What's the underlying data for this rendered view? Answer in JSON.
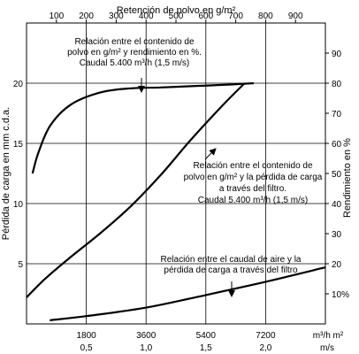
{
  "chart_data": {
    "type": "line",
    "top_axis": {
      "label": "Retención de polvo en g/m²",
      "range": [
        0,
        1000
      ],
      "ticks": [
        100,
        200,
        300,
        400,
        500,
        600,
        700,
        800,
        900
      ]
    },
    "left_axis": {
      "label": "Pérdida de carga en mm c.d.a.",
      "range": [
        0,
        25
      ],
      "ticks": [
        5,
        10,
        15,
        20
      ]
    },
    "right_axis": {
      "label": "Rendimiento en %",
      "range": [
        0,
        100
      ],
      "ticks": [
        {
          "v": 10,
          "t": "10%"
        },
        {
          "v": 20,
          "t": "20"
        },
        {
          "v": 30,
          "t": "30"
        },
        {
          "v": 40,
          "t": "40"
        },
        {
          "v": 50,
          "t": "50"
        },
        {
          "v": 60,
          "t": "60"
        },
        {
          "v": 70,
          "t": "70"
        },
        {
          "v": 80,
          "t": "80"
        },
        {
          "v": 90,
          "t": "90"
        }
      ]
    },
    "bottom_axis": {
      "range": [
        0,
        9000
      ],
      "ticks": [
        1800,
        3600,
        5400,
        7200
      ],
      "sub_ticks": [
        "0,5",
        "1,0",
        "1,5",
        "2,0"
      ],
      "unit_label": "m³/h m²",
      "unit_label2": "m/s"
    },
    "series": [
      {
        "axes": "top-right",
        "points": [
          [
            20,
            50
          ],
          [
            40,
            57
          ],
          [
            80,
            66
          ],
          [
            150,
            73
          ],
          [
            250,
            77
          ],
          [
            350,
            78.3
          ],
          [
            450,
            78.6
          ],
          [
            550,
            79
          ],
          [
            650,
            79.4
          ],
          [
            760,
            80
          ]
        ]
      },
      {
        "axes": "top-left",
        "points": [
          [
            0,
            2.2
          ],
          [
            60,
            3.7
          ],
          [
            140,
            5.4
          ],
          [
            250,
            7.6
          ],
          [
            350,
            9.8
          ],
          [
            450,
            12.4
          ],
          [
            550,
            15.3
          ],
          [
            650,
            18.0
          ],
          [
            730,
            20.0
          ]
        ]
      },
      {
        "axes": "bottom-left",
        "points": [
          [
            700,
            0.3
          ],
          [
            1800,
            0.65
          ],
          [
            3600,
            1.35
          ],
          [
            5400,
            2.4
          ],
          [
            7200,
            3.5
          ],
          [
            9000,
            4.7
          ]
        ]
      }
    ],
    "annotations": [
      {
        "lines": [
          "Relación entre el contenido de",
          "polvo en g/m² y rendimiento en %.",
          "Caudal 5.400 m³/h (1,5 m/s)"
        ]
      },
      {
        "lines": [
          "Relación entre el contenido de",
          "polvo en g/m² y la pérdida de carga",
          "a través del filtro.",
          "Caudal 5.400 m³/h (1,5 m/s)"
        ]
      },
      {
        "lines": [
          "Relación entre el caudal de aire y la",
          "pérdida de carga a través del filtro"
        ]
      }
    ]
  }
}
